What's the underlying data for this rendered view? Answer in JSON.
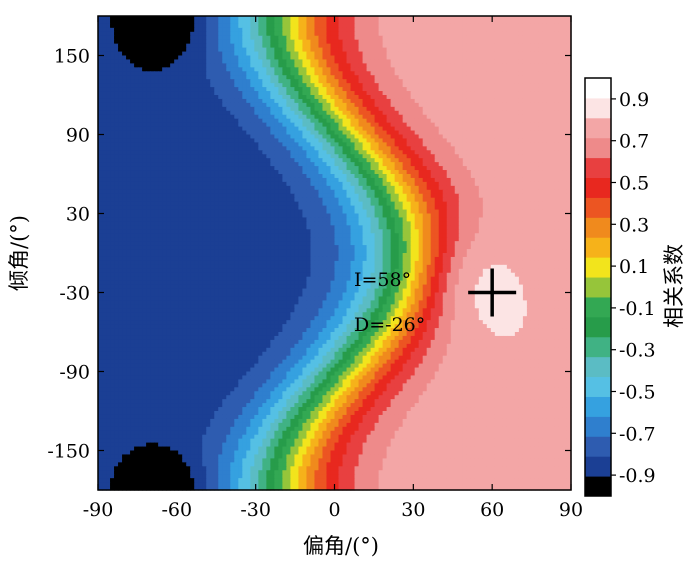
{
  "chart_data": {
    "type": "heatmap",
    "title": "",
    "xlabel": "偏角/(°)",
    "ylabel": "倾角/(°)",
    "xlim": [
      -90,
      90
    ],
    "ylim": [
      -180,
      180
    ],
    "xticks": [
      "-90",
      "-60",
      "-30",
      "0",
      "30",
      "60",
      "90"
    ],
    "xtick_values": [
      -90,
      -60,
      -30,
      0,
      30,
      60,
      90
    ],
    "yticks": [
      "150",
      "90",
      "30",
      "-30",
      "-90",
      "-150"
    ],
    "ytick_values": [
      150,
      90,
      30,
      -30,
      -90,
      -150
    ],
    "colorbar": {
      "label": "相关系数",
      "ticks": [
        "0.9",
        "0.7",
        "0.5",
        "0.3",
        "0.1",
        "-0.1",
        "-0.3",
        "-0.5",
        "-0.7",
        "-0.9"
      ],
      "tick_values": [
        0.9,
        0.7,
        0.5,
        0.3,
        0.1,
        -0.1,
        -0.3,
        -0.5,
        -0.7,
        -0.9
      ],
      "levels": [
        -1.0,
        -0.9,
        -0.8,
        -0.7,
        -0.6,
        -0.5,
        -0.4,
        -0.3,
        -0.2,
        -0.1,
        0.0,
        0.1,
        0.2,
        0.3,
        0.4,
        0.5,
        0.6,
        0.7,
        0.8,
        0.9,
        1.0
      ],
      "colors": [
        "#000000",
        "#1b3f94",
        "#2e5cb0",
        "#2f7fce",
        "#35a1e0",
        "#55c0e4",
        "#5bbcc4",
        "#40b284",
        "#279c4a",
        "#33a853",
        "#96c53a",
        "#f2e41c",
        "#f6b21a",
        "#f08a1d",
        "#ec5522",
        "#e8281f",
        "#e84040",
        "#ee8a8a",
        "#f3a6a6",
        "#fce4e4",
        "#ffffff"
      ]
    },
    "maximum": {
      "dip": -30,
      "declination": 60,
      "value": 0.92
    },
    "annotations": [
      "I=58°",
      "D=-26°"
    ],
    "grid": false
  }
}
